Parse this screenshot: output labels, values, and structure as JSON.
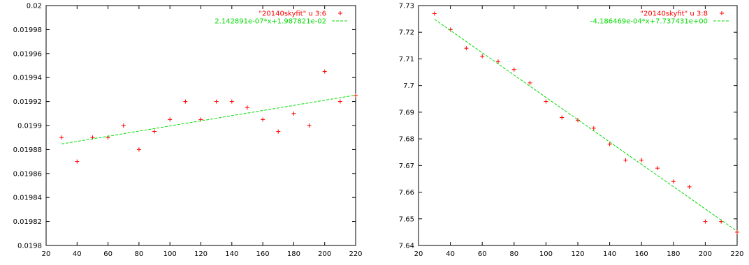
{
  "chart_data": [
    {
      "type": "scatter",
      "title": "",
      "xlabel": "",
      "ylabel": "",
      "xlim": [
        20,
        220
      ],
      "ylim": [
        0.0198,
        0.02
      ],
      "x_ticks": [
        "20",
        "40",
        "60",
        "80",
        "100",
        "120",
        "140",
        "160",
        "180",
        "200",
        "220"
      ],
      "y_ticks": [
        "0.0198",
        "0.01982",
        "0.01984",
        "0.01986",
        "0.01988",
        "0.0199",
        "0.01992",
        "0.01994",
        "0.01996",
        "0.01998",
        "0.02"
      ],
      "grid": false,
      "legend_position": "top-right",
      "series": [
        {
          "name": "\"20140skyfit\" u 3:6",
          "kind": "points",
          "marker": "+",
          "color": "#ff0000",
          "x": [
            30,
            40,
            50,
            60,
            70,
            80,
            90,
            100,
            110,
            120,
            130,
            140,
            150,
            160,
            170,
            180,
            190,
            200,
            210,
            220
          ],
          "y": [
            0.01989,
            0.01987,
            0.01989,
            0.01989,
            0.0199,
            0.01988,
            0.019895,
            0.019905,
            0.01992,
            0.019905,
            0.01992,
            0.01992,
            0.019915,
            0.019905,
            0.019895,
            0.01991,
            0.0199,
            0.019945,
            0.01992,
            0.019925
          ]
        },
        {
          "name": "2.142891e-07*x+1.987821e-02",
          "kind": "line",
          "dash": true,
          "color": "#00dd00",
          "x": [
            30,
            220
          ],
          "y": [
            0.019884639,
            0.019925355
          ]
        }
      ]
    },
    {
      "type": "scatter",
      "title": "",
      "xlabel": "",
      "ylabel": "",
      "xlim": [
        20,
        220
      ],
      "ylim": [
        7.64,
        7.73
      ],
      "x_ticks": [
        "20",
        "40",
        "60",
        "80",
        "100",
        "120",
        "140",
        "160",
        "180",
        "200",
        "220"
      ],
      "y_ticks": [
        "7.64",
        "7.65",
        "7.66",
        "7.67",
        "7.68",
        "7.69",
        "7.7",
        "7.71",
        "7.72",
        "7.73"
      ],
      "grid": false,
      "legend_position": "top-right",
      "series": [
        {
          "name": "\"20140skyfit\" u 3:8",
          "kind": "points",
          "marker": "+",
          "color": "#ff0000",
          "x": [
            30,
            40,
            50,
            60,
            70,
            80,
            90,
            100,
            110,
            120,
            130,
            140,
            150,
            160,
            170,
            180,
            190,
            200,
            210,
            220
          ],
          "y": [
            7.727,
            7.721,
            7.714,
            7.711,
            7.709,
            7.706,
            7.701,
            7.694,
            7.688,
            7.687,
            7.684,
            7.678,
            7.672,
            7.672,
            7.669,
            7.664,
            7.662,
            7.649,
            7.649,
            7.645
          ]
        },
        {
          "name": "-4.186469e-04*x+7.737431e+00",
          "kind": "line",
          "dash": true,
          "color": "#00dd00",
          "x": [
            30,
            220
          ],
          "y": [
            7.724871,
            7.645329
          ]
        }
      ]
    }
  ]
}
